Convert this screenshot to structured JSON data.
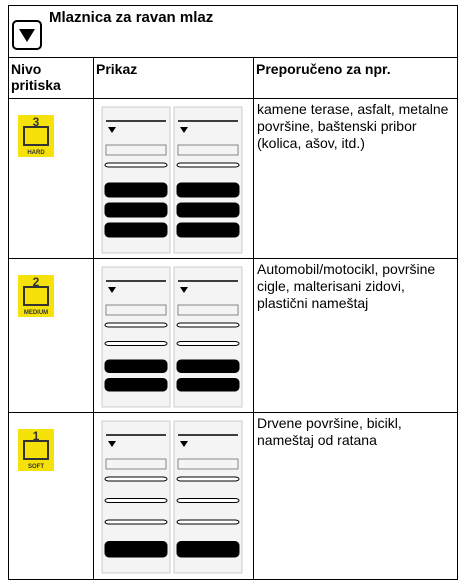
{
  "header": {
    "title": "Mlaznica za ravan mlaz"
  },
  "table": {
    "columns": [
      "Nivo pritiska",
      "Prikaz",
      "Preporučeno za npr."
    ],
    "rows": [
      {
        "level": "3",
        "level_label": "HARD",
        "recommended": "kamene terase, asfalt, metalne površine, baštenski pribor (kolica, ašov, itd.)"
      },
      {
        "level": "2",
        "level_label": "MEDIUM",
        "recommended": "Automobil/motocikl, površine cigle, malterisani zidovi, plastični nameštaj"
      },
      {
        "level": "1",
        "level_label": "SOFT",
        "recommended": "Drvene površine, bicikl, nameštaj od ratana"
      }
    ]
  }
}
